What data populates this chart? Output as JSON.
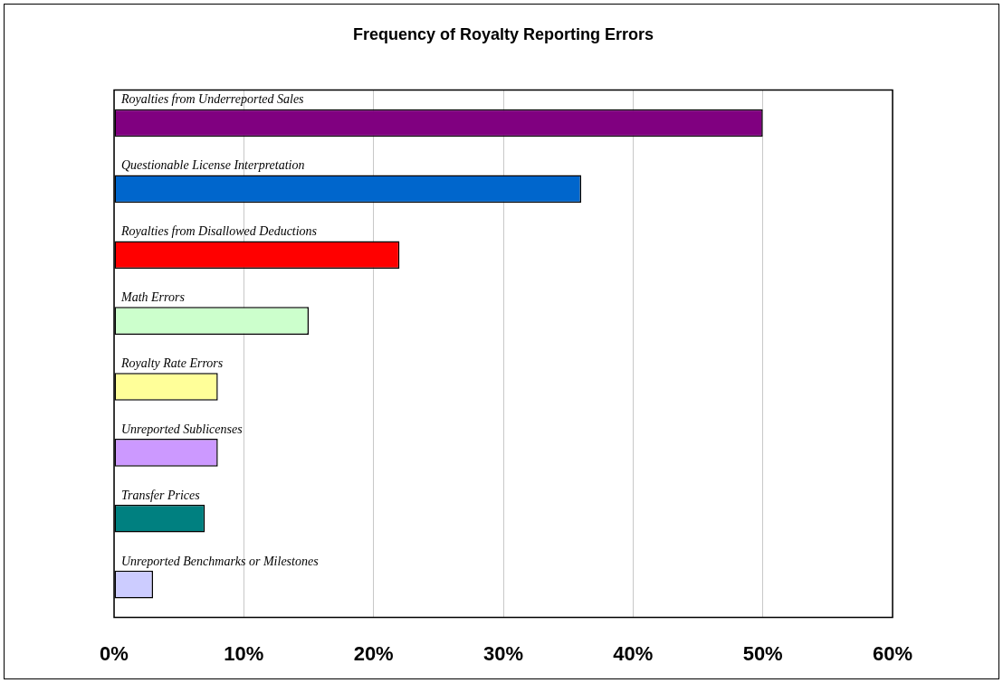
{
  "chart_data": {
    "type": "bar",
    "orientation": "horizontal",
    "title": "Frequency of Royalty Reporting Errors",
    "categories": [
      "Royalties from Underreported Sales",
      "Questionable License Interpretation",
      "Royalties from Disallowed Deductions",
      "Math Errors",
      "Royalty Rate Errors",
      "Unreported Sublicenses",
      "Transfer Prices",
      "Unreported Benchmarks or Milestones"
    ],
    "values": [
      50,
      36,
      22,
      15,
      8,
      8,
      7,
      3
    ],
    "colors": [
      "#800080",
      "#0066cc",
      "#ff0000",
      "#ccffcc",
      "#ffff99",
      "#cc99ff",
      "#008080",
      "#ccccff"
    ],
    "xlim": [
      0,
      60
    ],
    "xticks": [
      {
        "value": 0,
        "label": "0%"
      },
      {
        "value": 10,
        "label": "10%"
      },
      {
        "value": 20,
        "label": "20%"
      },
      {
        "value": 30,
        "label": "30%"
      },
      {
        "value": 40,
        "label": "40%"
      },
      {
        "value": 50,
        "label": "50%"
      },
      {
        "value": 60,
        "label": "60%"
      }
    ],
    "grid": "x",
    "legend": false
  }
}
